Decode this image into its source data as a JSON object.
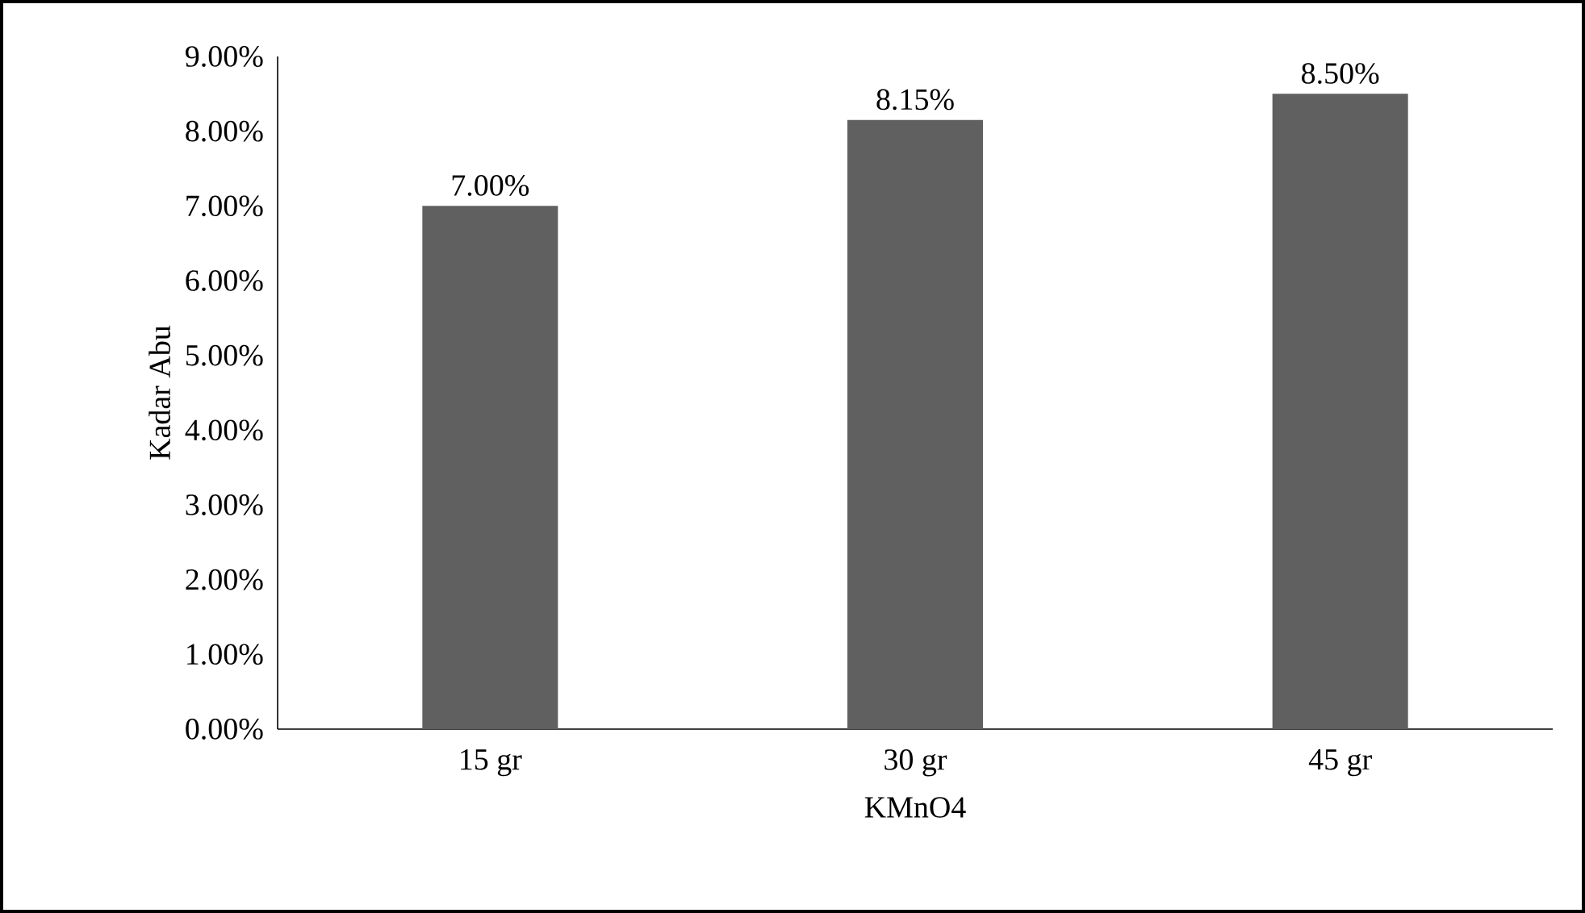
{
  "chart_data": {
    "type": "bar",
    "xlabel": "KMnO4",
    "ylabel": "Kadar Abu",
    "categories": [
      "15 gr",
      "30 gr",
      "45 gr"
    ],
    "values": [
      7.0,
      8.15,
      8.5
    ],
    "value_labels": [
      "7.00%",
      "8.15%",
      "8.50%"
    ],
    "color": "#606060",
    "ylim": [
      0,
      9
    ],
    "yticks": [
      {
        "value": 0,
        "label": "0.00%"
      },
      {
        "value": 1,
        "label": "1.00%"
      },
      {
        "value": 2,
        "label": "2.00%"
      },
      {
        "value": 3,
        "label": "3.00%"
      },
      {
        "value": 4,
        "label": "4.00%"
      },
      {
        "value": 5,
        "label": "5.00%"
      },
      {
        "value": 6,
        "label": "6.00%"
      },
      {
        "value": 7,
        "label": "7.00%"
      },
      {
        "value": 8,
        "label": "8.00%"
      },
      {
        "value": 9,
        "label": "9.00%"
      }
    ]
  }
}
